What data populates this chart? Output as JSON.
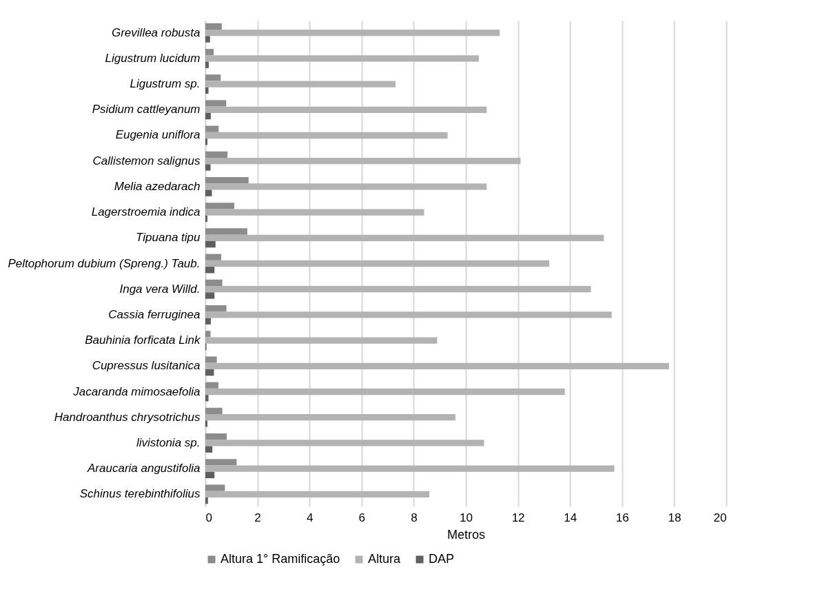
{
  "chart_data": {
    "type": "bar",
    "orientation": "horizontal",
    "xlabel": "Metros",
    "categories": [
      "Grevillea robusta",
      "Ligustrum lucidum",
      "Ligustrum sp.",
      "Psidium cattleyanum",
      "Eugenia uniflora",
      "Callistemon salignus",
      "Melia azedarach",
      "Lagerstroemia indica",
      "Tipuana tipu",
      "Peltophorum dubium (Spreng.) Taub.",
      "Inga vera Willd.",
      "Cassia ferruginea",
      "Bauhinia forficata Link",
      "Cupressus lusitanica",
      "Jacaranda mimosaefolia",
      "Handroanthus chrysotrichus",
      "livistonia sp.",
      "Araucaria angustifolia",
      "Schinus terebinthifolius"
    ],
    "series": [
      {
        "name": "Altura 1° Ramificação",
        "color": "#8c8c8c",
        "values": [
          0.63,
          0.32,
          0.59,
          0.8,
          0.51,
          0.85,
          1.66,
          1.11,
          1.61,
          0.61,
          0.65,
          0.81,
          0.2,
          0.44,
          0.5,
          0.65,
          0.82,
          1.2,
          0.75
        ]
      },
      {
        "name": "Altura",
        "color": "#b3b3b3",
        "values": [
          11.3,
          10.5,
          7.3,
          10.8,
          9.3,
          12.1,
          10.8,
          8.4,
          15.3,
          13.2,
          14.8,
          15.6,
          8.9,
          17.8,
          13.8,
          9.6,
          10.7,
          15.7,
          8.6
        ]
      },
      {
        "name": "DAP",
        "color": "#5f5f5f",
        "values": [
          0.18,
          0.13,
          0.12,
          0.21,
          0.08,
          0.2,
          0.25,
          0.08,
          0.39,
          0.35,
          0.35,
          0.21,
          0.04,
          0.33,
          0.12,
          0.08,
          0.27,
          0.35,
          0.1
        ]
      }
    ],
    "xlim": [
      0,
      20
    ],
    "xticks": [
      0,
      2,
      4,
      6,
      8,
      10,
      12,
      14,
      16,
      18,
      20
    ],
    "grid": "x",
    "legend": "bottom"
  }
}
